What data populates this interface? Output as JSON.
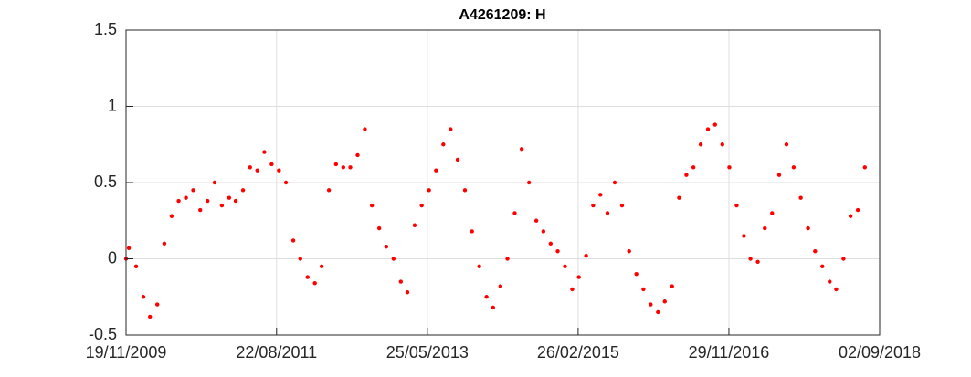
{
  "chart_data": {
    "type": "scatter",
    "title": "A4261209: H",
    "color": "#ff0000",
    "grid": true,
    "xlim": [
      "2009-11-19",
      "2018-09-02"
    ],
    "xticks": [
      {
        "value": "2009-11-19",
        "label": "19/11/2009"
      },
      {
        "value": "2011-08-22",
        "label": "22/08/2011"
      },
      {
        "value": "2013-05-25",
        "label": "25/05/2013"
      },
      {
        "value": "2015-02-26",
        "label": "26/02/2015"
      },
      {
        "value": "2016-11-29",
        "label": "29/11/2016"
      },
      {
        "value": "2018-09-02",
        "label": "02/09/2018"
      }
    ],
    "ylim": [
      -0.5,
      1.5
    ],
    "yticks": [
      1.5,
      1,
      0.5,
      0,
      -0.5
    ],
    "x": [
      "2009-11-19",
      "2009-12-01",
      "2010-01-01",
      "2010-02-01",
      "2010-03-01",
      "2010-04-01",
      "2010-05-01",
      "2010-06-01",
      "2010-07-01",
      "2010-08-01",
      "2010-09-01",
      "2010-10-01",
      "2010-11-01",
      "2010-12-01",
      "2011-01-01",
      "2011-02-01",
      "2011-03-01",
      "2011-04-01",
      "2011-05-01",
      "2011-06-01",
      "2011-07-01",
      "2011-08-01",
      "2011-09-01",
      "2011-10-01",
      "2011-11-01",
      "2011-12-01",
      "2012-01-01",
      "2012-02-01",
      "2012-03-01",
      "2012-04-01",
      "2012-05-01",
      "2012-06-01",
      "2012-07-01",
      "2012-08-01",
      "2012-09-01",
      "2012-10-01",
      "2012-11-01",
      "2012-12-01",
      "2013-01-01",
      "2013-02-01",
      "2013-03-01",
      "2013-04-01",
      "2013-05-01",
      "2013-06-01",
      "2013-07-01",
      "2013-08-01",
      "2013-09-01",
      "2013-10-01",
      "2013-11-01",
      "2013-12-01",
      "2014-01-01",
      "2014-02-01",
      "2014-03-01",
      "2014-04-01",
      "2014-05-01",
      "2014-06-01",
      "2014-07-01",
      "2014-08-01",
      "2014-09-01",
      "2014-10-01",
      "2014-11-01",
      "2014-12-01",
      "2015-01-01",
      "2015-02-01",
      "2015-03-01",
      "2015-04-01",
      "2015-05-01",
      "2015-06-01",
      "2015-07-01",
      "2015-08-01",
      "2015-09-01",
      "2015-10-01",
      "2015-11-01",
      "2015-12-01",
      "2016-01-01",
      "2016-02-01",
      "2016-03-01",
      "2016-04-01",
      "2016-05-01",
      "2016-06-01",
      "2016-07-01",
      "2016-08-01",
      "2016-09-01",
      "2016-10-01",
      "2016-11-01",
      "2016-12-01",
      "2017-01-01",
      "2017-02-01",
      "2017-03-01",
      "2017-04-01",
      "2017-05-01",
      "2017-06-01",
      "2017-07-01",
      "2017-08-01",
      "2017-09-01",
      "2017-10-01",
      "2017-11-01",
      "2017-12-01",
      "2018-01-01",
      "2018-02-01",
      "2018-03-01",
      "2018-04-01",
      "2018-05-01",
      "2018-06-01",
      "2018-07-01"
    ],
    "values": [
      0.0,
      0.07,
      -0.05,
      -0.25,
      -0.38,
      -0.3,
      0.1,
      0.28,
      0.38,
      0.4,
      0.45,
      0.32,
      0.38,
      0.5,
      0.35,
      0.4,
      0.38,
      0.45,
      0.6,
      0.58,
      0.7,
      0.62,
      0.58,
      0.5,
      0.12,
      0.0,
      -0.12,
      -0.16,
      -0.05,
      0.45,
      0.62,
      0.6,
      0.6,
      0.68,
      0.85,
      0.35,
      0.2,
      0.08,
      0.0,
      -0.15,
      -0.22,
      0.22,
      0.35,
      0.45,
      0.58,
      0.75,
      0.85,
      0.65,
      0.45,
      0.18,
      -0.05,
      -0.25,
      -0.32,
      -0.18,
      0.0,
      0.3,
      0.72,
      0.5,
      0.25,
      0.18,
      0.1,
      0.05,
      -0.05,
      -0.2,
      -0.12,
      0.02,
      0.35,
      0.42,
      0.3,
      0.5,
      0.35,
      0.05,
      -0.1,
      -0.2,
      -0.3,
      -0.35,
      -0.28,
      -0.18,
      0.4,
      0.55,
      0.6,
      0.75,
      0.85,
      0.88,
      0.75,
      0.6,
      0.35,
      0.15,
      0.0,
      -0.02,
      0.2,
      0.3,
      0.55,
      0.75,
      0.6,
      0.4,
      0.2,
      0.05,
      -0.05,
      -0.15,
      -0.2,
      0.0,
      0.28,
      0.32,
      0.6
    ]
  }
}
